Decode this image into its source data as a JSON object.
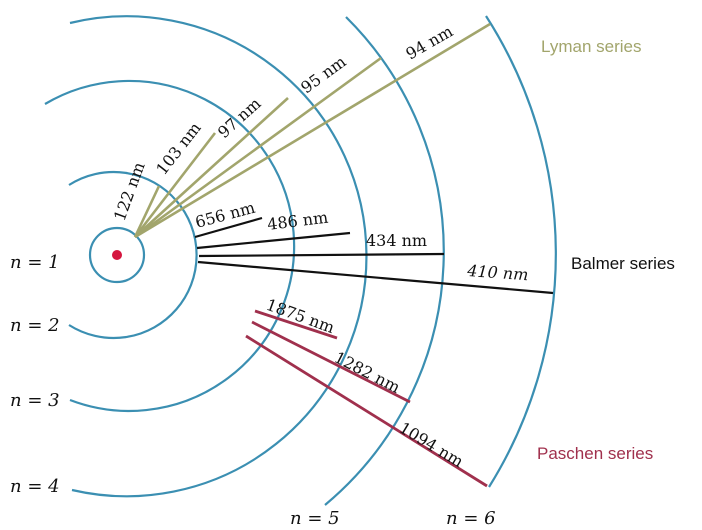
{
  "colors": {
    "orbit": "#3b8fb2",
    "nucleus": "#d5163f",
    "lyman": "#a2a56c",
    "balmer": "#111111",
    "paschen": "#a0304d"
  },
  "orbits": {
    "n1": "n = 1",
    "n2": "n = 2",
    "n3": "n = 3",
    "n4": "n = 4",
    "n5": "n = 5",
    "n6": "n = 6"
  },
  "series": {
    "lyman": {
      "name": "Lyman series",
      "lines": [
        "122 nm",
        "103 nm",
        "97 nm",
        "95 nm",
        "94 nm"
      ]
    },
    "balmer": {
      "name": "Balmer series",
      "lines": [
        "656 nm",
        "486 nm",
        "434 nm",
        "410 nm"
      ]
    },
    "paschen": {
      "name": "Paschen series",
      "lines": [
        "1875 nm",
        "1282 nm",
        "1094 nm"
      ]
    }
  }
}
